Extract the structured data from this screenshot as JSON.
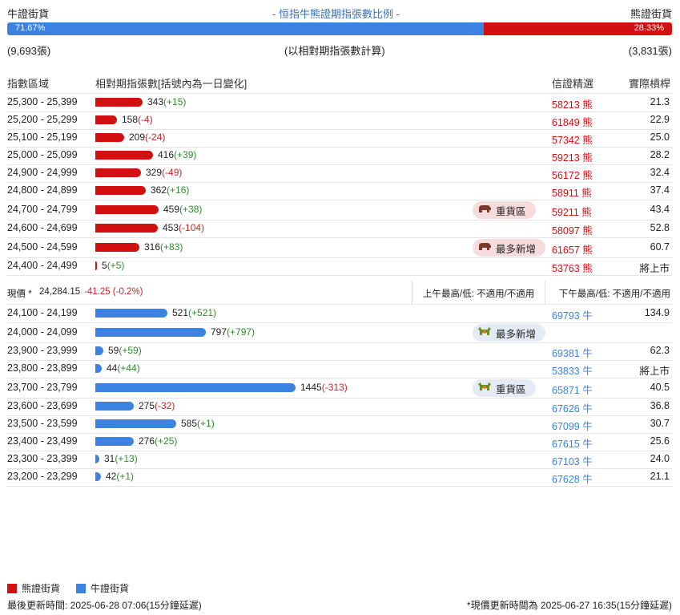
{
  "header": {
    "left_label": "牛證街貨",
    "center_label": "- 恒指牛熊證期指張數比例 -",
    "right_label": "熊證街貨",
    "bull_pct_label": "71.67%",
    "bear_pct_label": "28.33%",
    "bull_pct": 71.67,
    "left_count": "(9,693張)",
    "center_note": "(以相對期指張數計算)",
    "right_count": "(3,831張)"
  },
  "table_header": {
    "range": "指數區域",
    "quantity": "相對期指張數[括號內為一日變化]",
    "recommend": "信證精選",
    "leverage": "實際槓桿"
  },
  "bear_rows": [
    {
      "range": "25,300 - 25,399",
      "count": "343",
      "change": "(+15)",
      "sign": "pos",
      "code": "58213",
      "type": "熊",
      "leverage": "21.3",
      "value": 343
    },
    {
      "range": "25,200 - 25,299",
      "count": "158",
      "change": "(-4)",
      "sign": "neg",
      "code": "61849",
      "type": "熊",
      "leverage": "22.9",
      "value": 158
    },
    {
      "range": "25,100 - 25,199",
      "count": "209",
      "change": "(-24)",
      "sign": "neg",
      "code": "57342",
      "type": "熊",
      "leverage": "25.0",
      "value": 209
    },
    {
      "range": "25,000 - 25,099",
      "count": "416",
      "change": "(+39)",
      "sign": "pos",
      "code": "59213",
      "type": "熊",
      "leverage": "28.2",
      "value": 416
    },
    {
      "range": "24,900 - 24,999",
      "count": "329",
      "change": "(-49)",
      "sign": "neg",
      "code": "56172",
      "type": "熊",
      "leverage": "32.4",
      "value": 329
    },
    {
      "range": "24,800 - 24,899",
      "count": "362",
      "change": "(+16)",
      "sign": "pos",
      "code": "58911",
      "type": "熊",
      "leverage": "37.4",
      "value": 362
    },
    {
      "range": "24,700 - 24,799",
      "count": "459",
      "change": "(+38)",
      "sign": "pos",
      "code": "59211",
      "type": "熊",
      "leverage": "43.4",
      "value": 459,
      "badge": "重貨區"
    },
    {
      "range": "24,600 - 24,699",
      "count": "453",
      "change": "(-104)",
      "sign": "neg",
      "code": "58097",
      "type": "熊",
      "leverage": "52.8",
      "value": 453
    },
    {
      "range": "24,500 - 24,599",
      "count": "316",
      "change": "(+83)",
      "sign": "pos",
      "code": "61657",
      "type": "熊",
      "leverage": "60.7",
      "value": 316,
      "badge": "最多新增"
    },
    {
      "range": "24,400 - 24,499",
      "count": "5",
      "change": "(+5)",
      "sign": "pos",
      "code": "53763",
      "type": "熊",
      "leverage": "將上市",
      "value": 5
    }
  ],
  "price_row": {
    "label": "現價 *",
    "price": "24,284.15",
    "change": "-41.25 (-0.2%)",
    "am": "上午最高/低: 不適用/不適用",
    "pm": "下午最高/低: 不適用/不適用"
  },
  "bull_rows": [
    {
      "range": "24,100 - 24,199",
      "count": "521",
      "change": "(+521)",
      "sign": "pos",
      "code": "69793",
      "type": "牛",
      "leverage": "134.9",
      "value": 521
    },
    {
      "range": "24,000 - 24,099",
      "count": "797",
      "change": "(+797)",
      "sign": "pos",
      "code": "",
      "type": "",
      "leverage": "",
      "value": 797,
      "badge": "最多新增"
    },
    {
      "range": "23,900 - 23,999",
      "count": "59",
      "change": "(+59)",
      "sign": "pos",
      "code": "69381",
      "type": "牛",
      "leverage": "62.3",
      "value": 59
    },
    {
      "range": "23,800 - 23,899",
      "count": "44",
      "change": "(+44)",
      "sign": "pos",
      "code": "53833",
      "type": "牛",
      "leverage": "將上市",
      "value": 44
    },
    {
      "range": "23,700 - 23,799",
      "count": "1445",
      "change": "(-313)",
      "sign": "neg",
      "code": "65871",
      "type": "牛",
      "leverage": "40.5",
      "value": 1445,
      "badge": "重貨區"
    },
    {
      "range": "23,600 - 23,699",
      "count": "275",
      "change": "(-32)",
      "sign": "neg",
      "code": "67626",
      "type": "牛",
      "leverage": "36.8",
      "value": 275
    },
    {
      "range": "23,500 - 23,599",
      "count": "585",
      "change": "(+1)",
      "sign": "pos",
      "code": "67099",
      "type": "牛",
      "leverage": "30.7",
      "value": 585
    },
    {
      "range": "23,400 - 23,499",
      "count": "276",
      "change": "(+25)",
      "sign": "pos",
      "code": "67615",
      "type": "牛",
      "leverage": "25.6",
      "value": 276
    },
    {
      "range": "23,300 - 23,399",
      "count": "31",
      "change": "(+13)",
      "sign": "pos",
      "code": "67103",
      "type": "牛",
      "leverage": "24.0",
      "value": 31
    },
    {
      "range": "23,200 - 23,299",
      "count": "42",
      "change": "(+1)",
      "sign": "pos",
      "code": "67628",
      "type": "牛",
      "leverage": "21.1",
      "value": 42
    }
  ],
  "legend": {
    "bear": "熊證街貨",
    "bull": "牛證街貨"
  },
  "footer": {
    "last_update": "最後更新時間: 2025-06-28 07:06(15分鐘延遲)",
    "price_update": "*現價更新時間為 2025-06-27 16:35(15分鐘延遲)"
  },
  "colors": {
    "bear": "#d21010",
    "bull": "#3c82e0",
    "positive": "#2e8b2e",
    "negative": "#c62828"
  }
}
